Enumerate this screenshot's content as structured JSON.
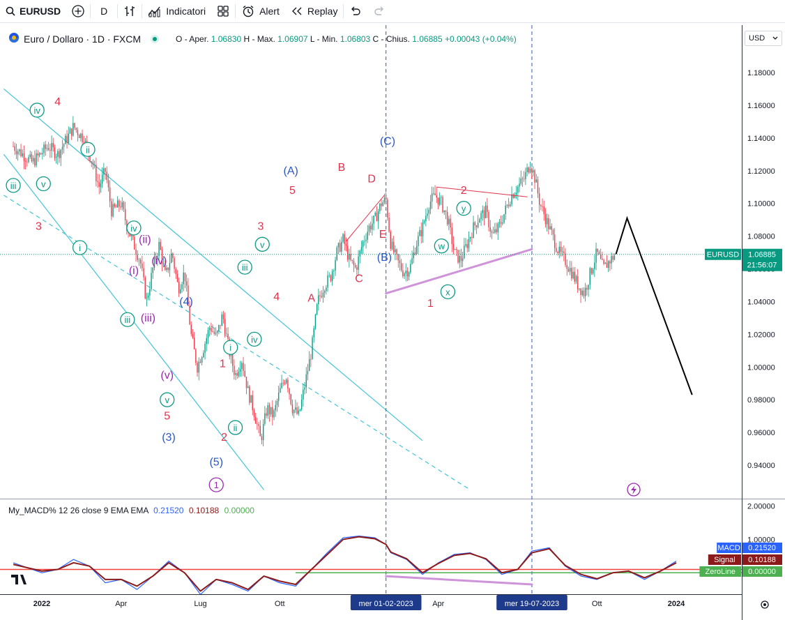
{
  "toolbar": {
    "symbol": "EURUSD",
    "interval": "D",
    "indicators_label": "Indicatori",
    "alert_label": "Alert",
    "replay_label": "Replay"
  },
  "legend": {
    "title": "Euro / Dollaro · 1D · FXCM",
    "open_label": "O - Aper.",
    "open": "1.06830",
    "high_label": "H - Max.",
    "high": "1.06907",
    "low_label": "L - Min.",
    "low": "1.06803",
    "close_label": "C - Chius.",
    "close": "1.06885",
    "change": "+0.00043 (+0.04%)"
  },
  "currency_select": "USD",
  "macd_legend": {
    "name": "My_MACD% 12 26 close 9 EMA EMA",
    "v1": "0.21520",
    "v2": "0.10188",
    "v3": "0.00000"
  },
  "colors": {
    "up": "#089981",
    "down": "#f23645",
    "channel": "#40c4d8",
    "wave_red": "#e0324b",
    "wave_blue": "#2a56c6",
    "wave_green": "#0a9a83",
    "wave_purple": "#9c27b0",
    "macd": "#2962ff",
    "signal": "#8b1a1a",
    "zero": "#4caf50"
  },
  "chart_data": {
    "type": "candlestick",
    "symbol": "EURUSD",
    "timeframe": "1D",
    "ylim": [
      0.925,
      1.195
    ],
    "yticks": [
      "1.18000",
      "1.16000",
      "1.14000",
      "1.12000",
      "1.10000",
      "1.08000",
      "1.06000",
      "1.04000",
      "1.02000",
      "1.00000",
      "0.98000",
      "0.96000",
      "0.94000"
    ],
    "xticks": [
      {
        "label": "2022",
        "t": 0.0
      },
      {
        "label": "Apr",
        "t": 0.25
      },
      {
        "label": "Lug",
        "t": 0.5
      },
      {
        "label": "Ott",
        "t": 0.75
      },
      {
        "label": "mer 01-02-2023",
        "t": 1.085,
        "highlight": true
      },
      {
        "label": "Apr",
        "t": 1.25
      },
      {
        "label": "mer 19-07-2023",
        "t": 1.545,
        "highlight": true
      },
      {
        "label": "Ott",
        "t": 1.75
      },
      {
        "label": "2024",
        "t": 2.0
      }
    ],
    "price_path": [
      [
        -0.09,
        1.135
      ],
      [
        -0.03,
        1.125
      ],
      [
        0.02,
        1.135
      ],
      [
        0.05,
        1.13
      ],
      [
        0.08,
        1.14
      ],
      [
        0.1,
        1.147
      ],
      [
        0.13,
        1.14
      ],
      [
        0.16,
        1.125
      ],
      [
        0.18,
        1.11
      ],
      [
        0.2,
        1.12
      ],
      [
        0.22,
        1.095
      ],
      [
        0.25,
        1.1
      ],
      [
        0.27,
        1.085
      ],
      [
        0.29,
        1.075
      ],
      [
        0.31,
        1.065
      ],
      [
        0.33,
        1.04
      ],
      [
        0.35,
        1.06
      ],
      [
        0.37,
        1.075
      ],
      [
        0.39,
        1.055
      ],
      [
        0.41,
        1.07
      ],
      [
        0.43,
        1.048
      ],
      [
        0.45,
        1.058
      ],
      [
        0.47,
        1.02
      ],
      [
        0.49,
        1.0
      ],
      [
        0.51,
        1.012
      ],
      [
        0.53,
        1.025
      ],
      [
        0.55,
        1.018
      ],
      [
        0.57,
        1.032
      ],
      [
        0.59,
        1.01
      ],
      [
        0.61,
        0.995
      ],
      [
        0.63,
        1.005
      ],
      [
        0.65,
        0.985
      ],
      [
        0.67,
        0.972
      ],
      [
        0.69,
        0.955
      ],
      [
        0.71,
        0.975
      ],
      [
        0.73,
        0.97
      ],
      [
        0.75,
        0.985
      ],
      [
        0.77,
        0.995
      ],
      [
        0.79,
        0.975
      ],
      [
        0.81,
        0.97
      ],
      [
        0.83,
        0.99
      ],
      [
        0.85,
        1.01
      ],
      [
        0.87,
        1.04
      ],
      [
        0.89,
        1.05
      ],
      [
        0.91,
        1.055
      ],
      [
        0.93,
        1.07
      ],
      [
        0.95,
        1.078
      ],
      [
        0.97,
        1.065
      ],
      [
        0.99,
        1.06
      ],
      [
        1.01,
        1.075
      ],
      [
        1.03,
        1.085
      ],
      [
        1.05,
        1.09
      ],
      [
        1.07,
        1.1
      ],
      [
        1.085,
        1.102
      ],
      [
        1.1,
        1.075
      ],
      [
        1.12,
        1.065
      ],
      [
        1.14,
        1.058
      ],
      [
        1.16,
        1.06
      ],
      [
        1.18,
        1.075
      ],
      [
        1.2,
        1.085
      ],
      [
        1.22,
        1.1
      ],
      [
        1.24,
        1.105
      ],
      [
        1.26,
        1.1
      ],
      [
        1.28,
        1.09
      ],
      [
        1.3,
        1.07
      ],
      [
        1.32,
        1.065
      ],
      [
        1.34,
        1.075
      ],
      [
        1.36,
        1.085
      ],
      [
        1.38,
        1.092
      ],
      [
        1.4,
        1.095
      ],
      [
        1.42,
        1.08
      ],
      [
        1.44,
        1.085
      ],
      [
        1.46,
        1.095
      ],
      [
        1.48,
        1.105
      ],
      [
        1.5,
        1.11
      ],
      [
        1.52,
        1.115
      ],
      [
        1.54,
        1.125
      ],
      [
        1.555,
        1.115
      ],
      [
        1.57,
        1.1
      ],
      [
        1.59,
        1.09
      ],
      [
        1.61,
        1.08
      ],
      [
        1.63,
        1.07
      ],
      [
        1.65,
        1.065
      ],
      [
        1.67,
        1.058
      ],
      [
        1.69,
        1.05
      ],
      [
        1.71,
        1.045
      ],
      [
        1.73,
        1.058
      ],
      [
        1.75,
        1.07
      ],
      [
        1.77,
        1.06
      ],
      [
        1.79,
        1.065
      ],
      [
        1.81,
        1.069
      ]
    ],
    "projection": [
      [
        1.81,
        1.069
      ],
      [
        1.845,
        1.091
      ],
      [
        2.05,
        0.983
      ]
    ],
    "last_price": {
      "label": "EURUSD",
      "value": "1.06885",
      "countdown": "21:56:07"
    },
    "channel_lines": [
      {
        "from": [
          -0.12,
          1.17
        ],
        "to": [
          1.2,
          0.955
        ],
        "style": "solid"
      },
      {
        "from": [
          -0.12,
          1.13
        ],
        "to": [
          0.7,
          0.925
        ],
        "style": "solid"
      },
      {
        "from": [
          -0.12,
          1.105
        ],
        "to": [
          1.35,
          0.925
        ],
        "style": "dashed"
      }
    ],
    "trend_lines": [
      {
        "from": [
          0.96,
          1.077
        ],
        "to": [
          1.08,
          1.105
        ],
        "color": "#e0324b"
      },
      {
        "from": [
          1.245,
          1.11
        ],
        "to": [
          1.53,
          1.104
        ],
        "color": "#e0324b"
      },
      {
        "from": [
          1.085,
          1.045
        ],
        "to": [
          1.545,
          1.072
        ],
        "color": "#ce93d8",
        "width": 3
      }
    ],
    "vlines": [
      1.085,
      1.545
    ],
    "wave_labels": [
      {
        "text": "4",
        "t": 0.05,
        "p": 1.162,
        "color": "red"
      },
      {
        "text": "iv",
        "t": -0.015,
        "p": 1.157,
        "color": "green",
        "circle": true
      },
      {
        "text": "v",
        "t": 0.005,
        "p": 1.112,
        "color": "green",
        "circle": true
      },
      {
        "text": "ii",
        "t": 0.145,
        "p": 1.133,
        "color": "green",
        "circle": true
      },
      {
        "text": "iii",
        "t": -0.09,
        "p": 1.111,
        "color": "green",
        "circle": true
      },
      {
        "text": "3",
        "t": -0.01,
        "p": 1.086,
        "color": "red"
      },
      {
        "text": "i",
        "t": 0.12,
        "p": 1.073,
        "color": "green",
        "circle": true
      },
      {
        "text": "iv",
        "t": 0.29,
        "p": 1.085,
        "color": "green",
        "circle": true
      },
      {
        "text": "(ii)",
        "t": 0.325,
        "p": 1.078,
        "color": "purple"
      },
      {
        "text": "(i)",
        "t": 0.29,
        "p": 1.059,
        "color": "purple"
      },
      {
        "text": "(iv)",
        "t": 0.37,
        "p": 1.065,
        "color": "purple"
      },
      {
        "text": "iii",
        "t": 0.27,
        "p": 1.029,
        "color": "green",
        "circle": true
      },
      {
        "text": "(iii)",
        "t": 0.335,
        "p": 1.03,
        "color": "purple"
      },
      {
        "text": "(4)",
        "t": 0.455,
        "p": 1.04,
        "color": "blue"
      },
      {
        "text": "(v)",
        "t": 0.395,
        "p": 0.995,
        "color": "purple"
      },
      {
        "text": "v",
        "t": 0.395,
        "p": 0.98,
        "color": "green",
        "circle": true
      },
      {
        "text": "5",
        "t": 0.395,
        "p": 0.97,
        "color": "red"
      },
      {
        "text": "(3)",
        "t": 0.4,
        "p": 0.957,
        "color": "blue"
      },
      {
        "text": "1",
        "t": 0.57,
        "p": 1.002,
        "color": "red"
      },
      {
        "text": "i",
        "t": 0.595,
        "p": 1.012,
        "color": "green",
        "circle": true
      },
      {
        "text": "iv",
        "t": 0.67,
        "p": 1.017,
        "color": "green",
        "circle": true
      },
      {
        "text": "ii",
        "t": 0.61,
        "p": 0.963,
        "color": "green",
        "circle": true
      },
      {
        "text": "2",
        "t": 0.575,
        "p": 0.957,
        "color": "red"
      },
      {
        "text": "(5)",
        "t": 0.55,
        "p": 0.942,
        "color": "blue"
      },
      {
        "text": "1",
        "t": 0.55,
        "p": 0.928,
        "color": "purple",
        "circle": true
      },
      {
        "text": "iii",
        "t": 0.64,
        "p": 1.061,
        "color": "green",
        "circle": true
      },
      {
        "text": "v",
        "t": 0.695,
        "p": 1.075,
        "color": "green",
        "circle": true
      },
      {
        "text": "3",
        "t": 0.69,
        "p": 1.086,
        "color": "red"
      },
      {
        "text": "4",
        "t": 0.74,
        "p": 1.043,
        "color": "red"
      },
      {
        "text": "(A)",
        "t": 0.785,
        "p": 1.12,
        "color": "blue"
      },
      {
        "text": "5",
        "t": 0.79,
        "p": 1.108,
        "color": "red"
      },
      {
        "text": "A",
        "t": 0.85,
        "p": 1.042,
        "color": "red"
      },
      {
        "text": "B",
        "t": 0.945,
        "p": 1.122,
        "color": "red"
      },
      {
        "text": "C",
        "t": 1.0,
        "p": 1.054,
        "color": "red"
      },
      {
        "text": "D",
        "t": 1.04,
        "p": 1.115,
        "color": "red"
      },
      {
        "text": "(C)",
        "t": 1.09,
        "p": 1.138,
        "color": "blue"
      },
      {
        "text": "E",
        "t": 1.075,
        "p": 1.081,
        "color": "red"
      },
      {
        "text": "(B)",
        "t": 1.08,
        "p": 1.067,
        "color": "blue"
      },
      {
        "text": "1",
        "t": 1.225,
        "p": 1.039,
        "color": "red"
      },
      {
        "text": "w",
        "t": 1.26,
        "p": 1.074,
        "color": "green",
        "circle": true
      },
      {
        "text": "x",
        "t": 1.28,
        "p": 1.046,
        "color": "green",
        "circle": true
      },
      {
        "text": "2",
        "t": 1.33,
        "p": 1.108,
        "color": "red"
      },
      {
        "text": "y",
        "t": 1.33,
        "p": 1.097,
        "color": "green",
        "circle": true
      }
    ],
    "macd": {
      "ylim": [
        -0.6,
        2.2
      ],
      "yticks": [
        "2.00000",
        "1.00000"
      ],
      "macd_path": [
        [
          -0.09,
          0.3
        ],
        [
          0.0,
          0.0
        ],
        [
          0.05,
          0.1
        ],
        [
          0.1,
          0.4
        ],
        [
          0.15,
          0.2
        ],
        [
          0.2,
          -0.3
        ],
        [
          0.25,
          -0.2
        ],
        [
          0.3,
          -0.5
        ],
        [
          0.35,
          -0.1
        ],
        [
          0.4,
          0.35
        ],
        [
          0.45,
          0.0
        ],
        [
          0.5,
          -0.65
        ],
        [
          0.55,
          -0.2
        ],
        [
          0.6,
          -0.35
        ],
        [
          0.65,
          -0.55
        ],
        [
          0.7,
          -0.1
        ],
        [
          0.75,
          -0.3
        ],
        [
          0.8,
          -0.4
        ],
        [
          0.85,
          0.1
        ],
        [
          0.9,
          0.6
        ],
        [
          0.95,
          1.05
        ],
        [
          1.0,
          1.1
        ],
        [
          1.05,
          1.05
        ],
        [
          1.085,
          0.85
        ],
        [
          1.1,
          0.6
        ],
        [
          1.15,
          0.4
        ],
        [
          1.2,
          -0.05
        ],
        [
          1.25,
          0.3
        ],
        [
          1.3,
          0.55
        ],
        [
          1.35,
          0.6
        ],
        [
          1.4,
          0.4
        ],
        [
          1.45,
          -0.05
        ],
        [
          1.5,
          0.1
        ],
        [
          1.545,
          0.65
        ],
        [
          1.6,
          0.75
        ],
        [
          1.65,
          0.2
        ],
        [
          1.7,
          -0.1
        ],
        [
          1.75,
          -0.2
        ],
        [
          1.8,
          0.0
        ],
        [
          1.85,
          0.05
        ],
        [
          1.9,
          -0.2
        ],
        [
          1.95,
          0.05
        ],
        [
          2.0,
          0.35
        ]
      ],
      "signal_path": [
        [
          -0.09,
          0.25
        ],
        [
          0.0,
          0.05
        ],
        [
          0.05,
          0.1
        ],
        [
          0.1,
          0.3
        ],
        [
          0.15,
          0.2
        ],
        [
          0.2,
          -0.2
        ],
        [
          0.25,
          -0.2
        ],
        [
          0.3,
          -0.4
        ],
        [
          0.35,
          -0.1
        ],
        [
          0.4,
          0.3
        ],
        [
          0.45,
          0.0
        ],
        [
          0.5,
          -0.55
        ],
        [
          0.55,
          -0.2
        ],
        [
          0.6,
          -0.3
        ],
        [
          0.65,
          -0.5
        ],
        [
          0.7,
          -0.1
        ],
        [
          0.75,
          -0.25
        ],
        [
          0.8,
          -0.35
        ],
        [
          0.85,
          0.1
        ],
        [
          0.9,
          0.55
        ],
        [
          0.95,
          1.0
        ],
        [
          1.0,
          1.08
        ],
        [
          1.05,
          1.02
        ],
        [
          1.085,
          0.85
        ],
        [
          1.1,
          0.62
        ],
        [
          1.15,
          0.42
        ],
        [
          1.2,
          0.0
        ],
        [
          1.25,
          0.28
        ],
        [
          1.3,
          0.52
        ],
        [
          1.35,
          0.58
        ],
        [
          1.4,
          0.42
        ],
        [
          1.45,
          0.0
        ],
        [
          1.5,
          0.1
        ],
        [
          1.545,
          0.6
        ],
        [
          1.6,
          0.72
        ],
        [
          1.65,
          0.22
        ],
        [
          1.7,
          -0.05
        ],
        [
          1.75,
          -0.18
        ],
        [
          1.8,
          0.0
        ],
        [
          1.85,
          0.05
        ],
        [
          1.9,
          -0.15
        ],
        [
          1.95,
          0.05
        ],
        [
          2.0,
          0.3
        ]
      ],
      "signal_level": 0.1,
      "zero_level": 0.0,
      "badges": [
        {
          "label": "MACD",
          "value": "0.21520",
          "color": "#2962ff"
        },
        {
          "label": "Signal",
          "value": "0.10188",
          "color": "#8b1a1a"
        },
        {
          "label": "ZeroLine",
          "value": "0.00000",
          "color": "#4caf50"
        }
      ]
    }
  }
}
